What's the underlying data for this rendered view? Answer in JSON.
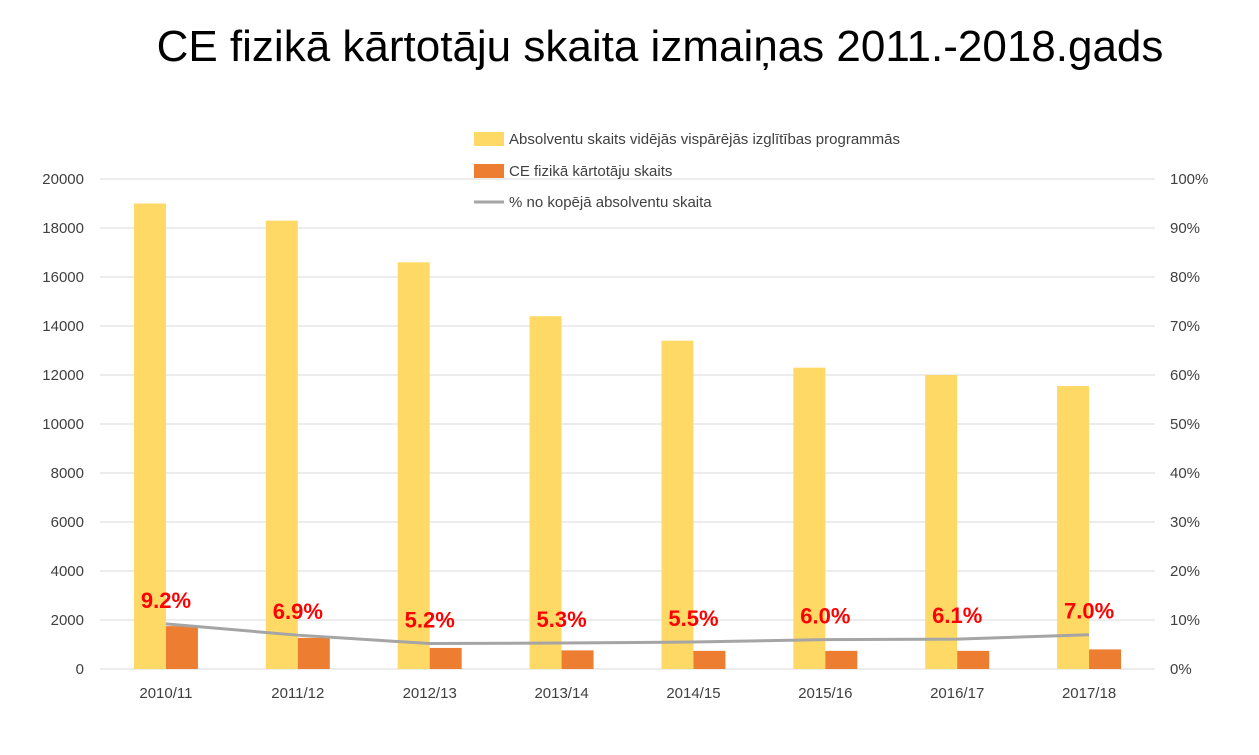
{
  "page": {
    "title": "CE fizikā kārtotāju skaita izmaiņas 2011.-2018.gads"
  },
  "colors": {
    "series_absolventi": "#ffd966",
    "series_kartotaji": "#ed7d31",
    "series_percent": "#a5a5a5",
    "data_label": "#ff0000",
    "grid": "#d9d9d9",
    "axis_text": "#404040"
  },
  "chart_data": {
    "type": "bar",
    "title": "CE fizikā kārtotāju skaita izmaiņas 2011.-2018.gads",
    "categories": [
      "2010/11",
      "2011/12",
      "2012/13",
      "2013/14",
      "2014/15",
      "2015/16",
      "2016/17",
      "2017/18"
    ],
    "series": [
      {
        "name": "Absolventu skaits vidējās vispārējās izglītības programmās",
        "type": "bar",
        "axis": "left",
        "values": [
          19000,
          18300,
          16600,
          14400,
          13400,
          12300,
          12000,
          11550
        ]
      },
      {
        "name": "CE fizikā kārtotāju skaits",
        "type": "bar",
        "axis": "left",
        "values": [
          1750,
          1270,
          860,
          760,
          740,
          740,
          740,
          800
        ]
      },
      {
        "name": "% no kopējā absolventu skaita",
        "type": "line",
        "axis": "right",
        "values": [
          9.2,
          6.9,
          5.2,
          5.3,
          5.5,
          6.0,
          6.1,
          7.0
        ],
        "data_labels": [
          "9.2%",
          "6.9%",
          "5.2%",
          "5.3%",
          "5.5%",
          "6.0%",
          "6.1%",
          "7.0%"
        ]
      }
    ],
    "y_left": {
      "ylim": [
        0,
        20000
      ],
      "ticks": [
        "0",
        "2000",
        "4000",
        "6000",
        "8000",
        "10000",
        "12000",
        "14000",
        "16000",
        "18000",
        "20000"
      ]
    },
    "y_right": {
      "ylim": [
        0,
        100
      ],
      "ticks": [
        "0%",
        "10%",
        "20%",
        "30%",
        "40%",
        "50%",
        "60%",
        "70%",
        "80%",
        "90%",
        "100%"
      ]
    },
    "grid": true,
    "legend_position": "top-center"
  }
}
